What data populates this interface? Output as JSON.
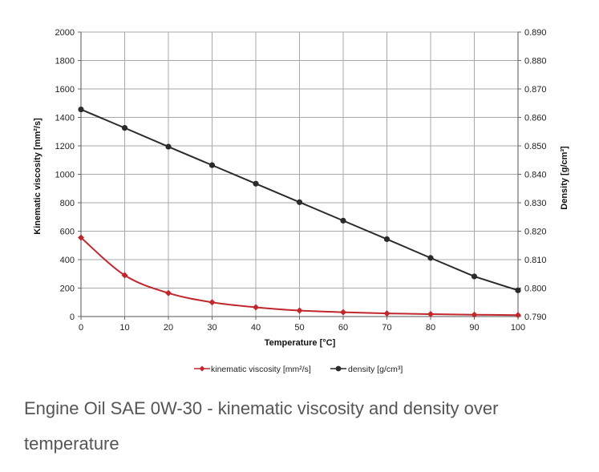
{
  "caption": "Engine Oil SAE 0W-30 - kinematic viscosity and density over temperature",
  "chart_data": {
    "type": "line",
    "title": "",
    "xlabel": "Temperature [°C]",
    "ylabel": "Kinematic viscosity [mm²/s]",
    "y2label": "Density [g/cm³]",
    "x": [
      0,
      10,
      20,
      30,
      40,
      50,
      60,
      70,
      80,
      90,
      100
    ],
    "xlim": [
      0,
      100
    ],
    "ylim": [
      0,
      2000
    ],
    "y2lim": [
      0.79,
      0.89
    ],
    "xticks": [
      "0",
      "10",
      "20",
      "30",
      "40",
      "50",
      "60",
      "70",
      "80",
      "90",
      "100"
    ],
    "yticks": [
      "0",
      "200",
      "400",
      "600",
      "800",
      "1000",
      "1200",
      "1400",
      "1600",
      "1800",
      "2000"
    ],
    "y2ticks": [
      "0.790",
      "0.800",
      "0.810",
      "0.820",
      "0.830",
      "0.840",
      "0.850",
      "0.860",
      "0.870",
      "0.880",
      "0.890"
    ],
    "grid": true,
    "legend_position": "bottom",
    "series": [
      {
        "name": "kinematic viscosity [mm²/s]",
        "axis": "left",
        "color": "#c0282d",
        "values": [
          555,
          290,
          165,
          100,
          65,
          42,
          30,
          22,
          17,
          13,
          10
        ]
      },
      {
        "name": "density [g/cm³]",
        "axis": "right",
        "color": "#2b2b2b",
        "values": [
          0.8628,
          0.8563,
          0.8497,
          0.8432,
          0.8367,
          0.8302,
          0.8237,
          0.8172,
          0.8106,
          0.8041,
          0.7992
        ]
      }
    ]
  }
}
